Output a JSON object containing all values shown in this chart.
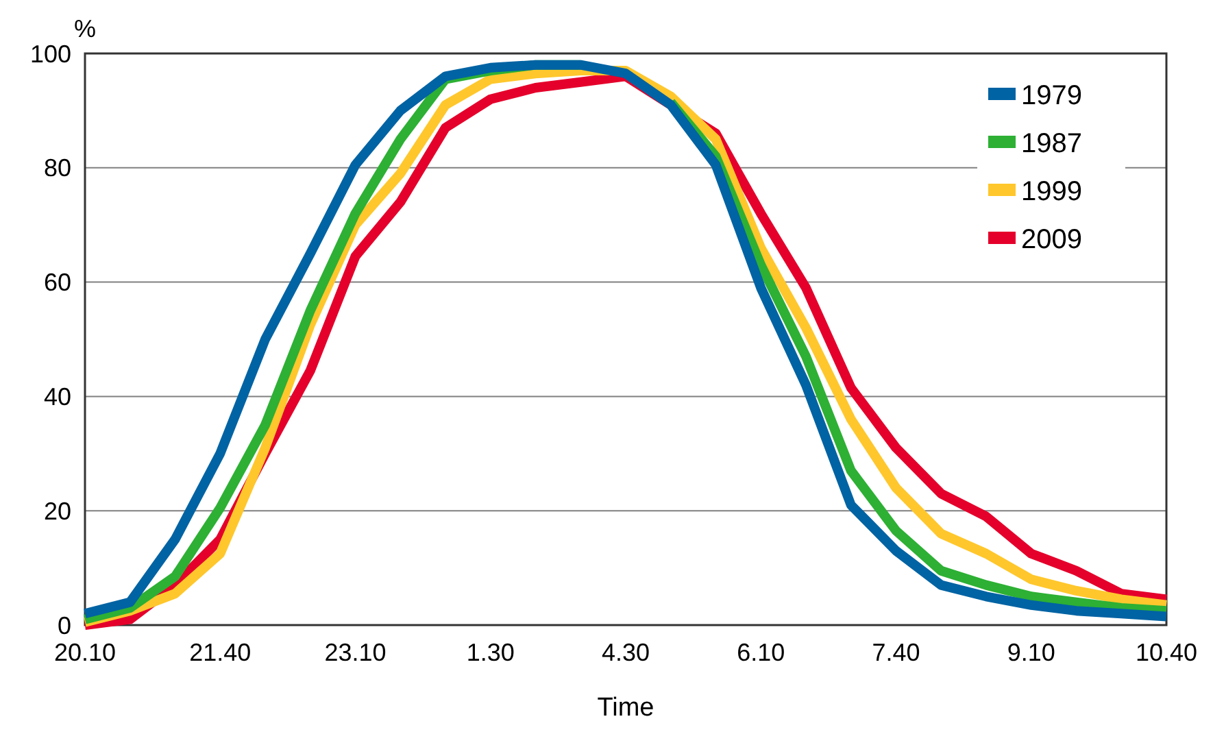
{
  "chart_data": {
    "type": "line",
    "ylabel": "%",
    "xlabel": "Time",
    "categories": [
      "20.10",
      null,
      null,
      "21.40",
      null,
      null,
      "23.10",
      null,
      null,
      "1.30",
      null,
      null,
      "4.30",
      null,
      null,
      "6.10",
      null,
      null,
      "7.40",
      null,
      null,
      "9.10",
      null,
      null,
      "10.40"
    ],
    "series": [
      {
        "name": "1979",
        "color": "#0063a3",
        "values": [
          2,
          4,
          15,
          30,
          50,
          65,
          80.5,
          90,
          96,
          97.5,
          98,
          98,
          96.5,
          91,
          80.5,
          59,
          42,
          21,
          13,
          7,
          5,
          3.5,
          2.5,
          2,
          1.5
        ]
      },
      {
        "name": "1987",
        "color": "#2db034",
        "values": [
          1,
          3,
          8.5,
          20.5,
          35,
          55,
          72,
          85,
          95.5,
          97,
          98,
          98,
          null,
          91.5,
          82,
          63,
          47,
          27,
          16.5,
          9.5,
          7,
          5,
          4,
          3,
          2.5
        ]
      },
      {
        "name": "1999",
        "color": "#ffc72c",
        "values": [
          0.5,
          2.5,
          5.5,
          12.5,
          31,
          52.5,
          70,
          79,
          91,
          95.5,
          96.5,
          97,
          97,
          92.5,
          85,
          66,
          52,
          36,
          24,
          16,
          12.5,
          8,
          6,
          4.5,
          3.5
        ]
      },
      {
        "name": "2009",
        "color": "#e4002b",
        "values": [
          0,
          1,
          7,
          15,
          30,
          44.5,
          64.5,
          74,
          87,
          92,
          94,
          95,
          96,
          91,
          86,
          72,
          59,
          41.5,
          31,
          23,
          19,
          12.5,
          9.5,
          5.5,
          4.5
        ]
      }
    ],
    "ylim": [
      0,
      100
    ],
    "yticks": [
      0,
      20,
      40,
      60,
      80,
      100
    ],
    "grid": "y",
    "legend": "top right",
    "line_style": "solid",
    "marker": "none"
  }
}
